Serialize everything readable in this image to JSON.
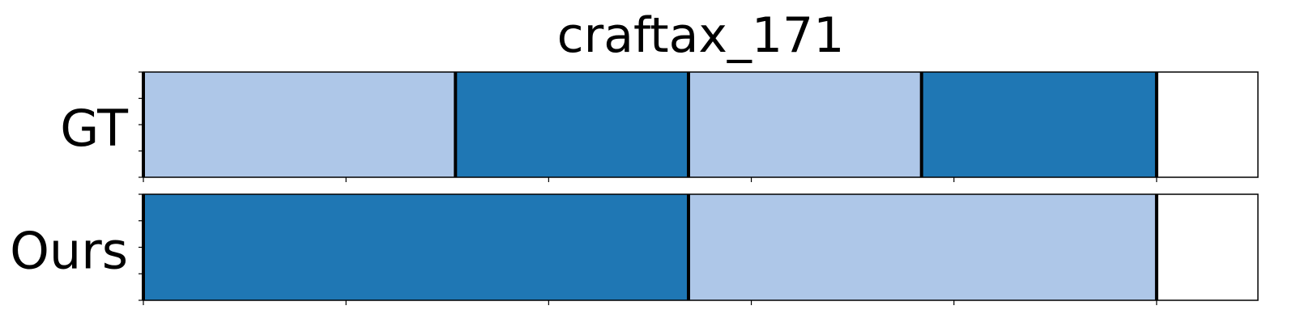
{
  "chart_data": {
    "type": "segmentation_timeline",
    "title": "craftax_171",
    "xlim": [
      0,
      550
    ],
    "x_ticks": [
      0,
      100,
      200,
      300,
      400,
      500
    ],
    "y_ticks_per_row": 5,
    "colors": {
      "light": "#aec7e8",
      "dark": "#1f77b4",
      "boundary": "#000000"
    },
    "rows": [
      {
        "label": "GT",
        "segments": [
          {
            "start": 0,
            "end": 154,
            "color": "light"
          },
          {
            "start": 154,
            "end": 269,
            "color": "dark"
          },
          {
            "start": 269,
            "end": 384,
            "color": "light"
          },
          {
            "start": 384,
            "end": 500,
            "color": "dark"
          }
        ],
        "boundaries": [
          0,
          154,
          269,
          384,
          500
        ]
      },
      {
        "label": "Ours",
        "segments": [
          {
            "start": 0,
            "end": 269,
            "color": "dark"
          },
          {
            "start": 269,
            "end": 500,
            "color": "light"
          }
        ],
        "boundaries": [
          0,
          269,
          500
        ]
      }
    ]
  }
}
